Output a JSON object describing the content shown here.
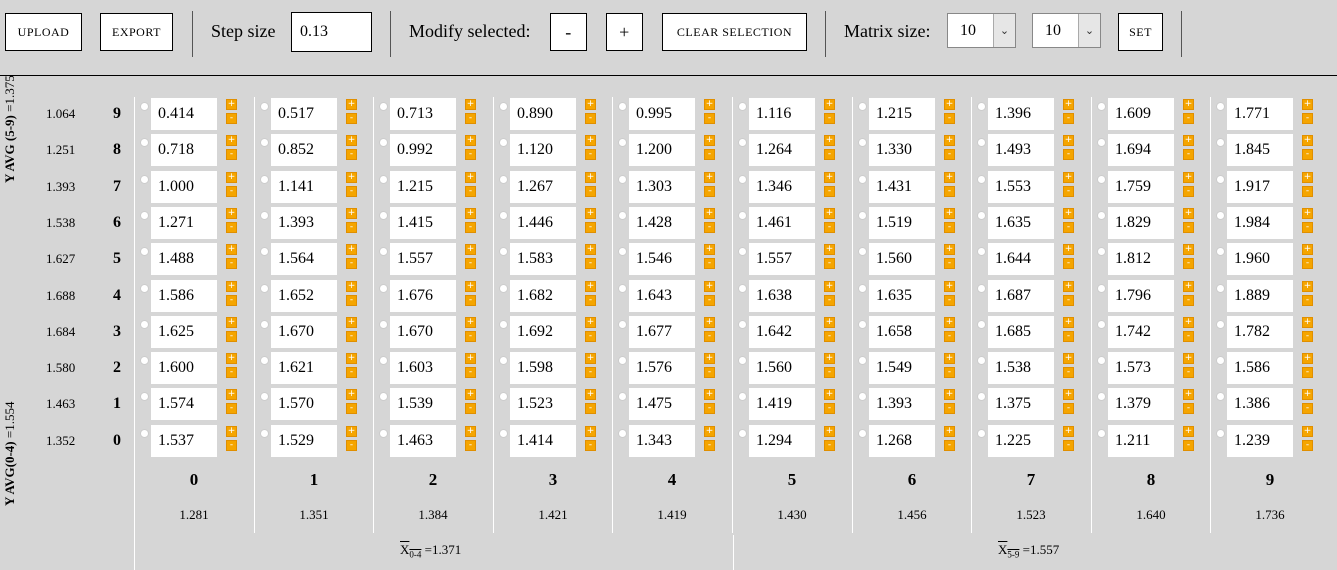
{
  "toolbar": {
    "upload_label": "UPLOAD",
    "export_label": "EXPORT",
    "step_size_label": "Step size",
    "step_size_value": "0.13",
    "modify_label": "Modify selected:",
    "minus_label": "-",
    "plus_label": "+",
    "clear_label": "CLEAR SELECTION",
    "matrix_size_label": "Matrix size:",
    "rows_select": "10",
    "cols_select": "10",
    "set_label": "SET"
  },
  "y_avg_top": {
    "label": "Y AVG (5-9)",
    "value": "=1.375"
  },
  "y_avg_bottom": {
    "label": "Y AVG(0-4)",
    "value": "=1.554"
  },
  "rows": [
    {
      "index": "9",
      "avg": "1.064",
      "values": [
        "0.414",
        "0.517",
        "0.713",
        "0.890",
        "0.995",
        "1.116",
        "1.215",
        "1.396",
        "1.609",
        "1.771"
      ]
    },
    {
      "index": "8",
      "avg": "1.251",
      "values": [
        "0.718",
        "0.852",
        "0.992",
        "1.120",
        "1.200",
        "1.264",
        "1.330",
        "1.493",
        "1.694",
        "1.845"
      ]
    },
    {
      "index": "7",
      "avg": "1.393",
      "values": [
        "1.000",
        "1.141",
        "1.215",
        "1.267",
        "1.303",
        "1.346",
        "1.431",
        "1.553",
        "1.759",
        "1.917"
      ]
    },
    {
      "index": "6",
      "avg": "1.538",
      "values": [
        "1.271",
        "1.393",
        "1.415",
        "1.446",
        "1.428",
        "1.461",
        "1.519",
        "1.635",
        "1.829",
        "1.984"
      ]
    },
    {
      "index": "5",
      "avg": "1.627",
      "values": [
        "1.488",
        "1.564",
        "1.557",
        "1.583",
        "1.546",
        "1.557",
        "1.560",
        "1.644",
        "1.812",
        "1.960"
      ]
    },
    {
      "index": "4",
      "avg": "1.688",
      "values": [
        "1.586",
        "1.652",
        "1.676",
        "1.682",
        "1.643",
        "1.638",
        "1.635",
        "1.687",
        "1.796",
        "1.889"
      ]
    },
    {
      "index": "3",
      "avg": "1.684",
      "values": [
        "1.625",
        "1.670",
        "1.670",
        "1.692",
        "1.677",
        "1.642",
        "1.658",
        "1.685",
        "1.742",
        "1.782"
      ]
    },
    {
      "index": "2",
      "avg": "1.580",
      "values": [
        "1.600",
        "1.621",
        "1.603",
        "1.598",
        "1.576",
        "1.560",
        "1.549",
        "1.538",
        "1.573",
        "1.586"
      ]
    },
    {
      "index": "1",
      "avg": "1.463",
      "values": [
        "1.574",
        "1.570",
        "1.539",
        "1.523",
        "1.475",
        "1.419",
        "1.393",
        "1.375",
        "1.379",
        "1.386"
      ]
    },
    {
      "index": "0",
      "avg": "1.352",
      "values": [
        "1.537",
        "1.529",
        "1.463",
        "1.414",
        "1.343",
        "1.294",
        "1.268",
        "1.225",
        "1.211",
        "1.239"
      ]
    }
  ],
  "columns": [
    {
      "index": "0",
      "avg": "1.281"
    },
    {
      "index": "1",
      "avg": "1.351"
    },
    {
      "index": "2",
      "avg": "1.384"
    },
    {
      "index": "3",
      "avg": "1.421"
    },
    {
      "index": "4",
      "avg": "1.419"
    },
    {
      "index": "5",
      "avg": "1.430"
    },
    {
      "index": "6",
      "avg": "1.456"
    },
    {
      "index": "7",
      "avg": "1.523"
    },
    {
      "index": "8",
      "avg": "1.640"
    },
    {
      "index": "9",
      "avg": "1.736"
    }
  ],
  "x_avg_left": {
    "symbol": "X",
    "range": "0-4",
    "value": "=1.371"
  },
  "x_avg_right": {
    "symbol": "X",
    "range": "5-9",
    "value": "=1.557"
  },
  "icons": {
    "plus": "plus-icon",
    "minus": "minus-icon",
    "radio": "radio-button",
    "dropdown": "chevron-down-icon"
  },
  "colors": {
    "accent": "#f5a500",
    "background": "#d6d6d6"
  }
}
